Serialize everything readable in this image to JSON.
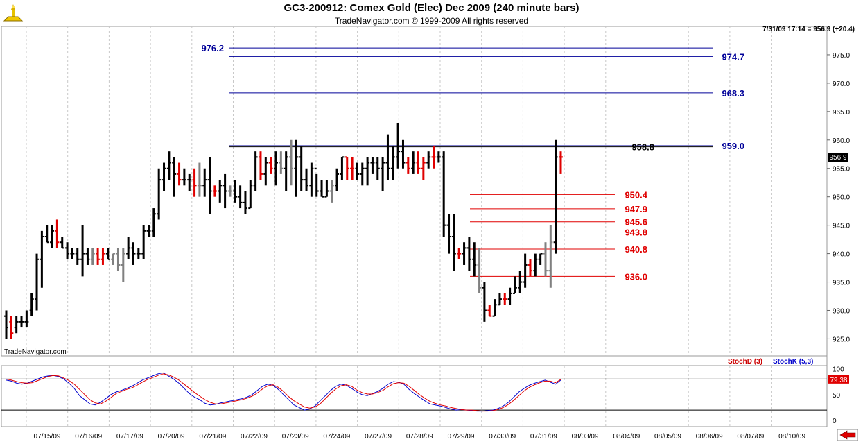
{
  "header": {
    "title": "GC3-200912:  Comex Gold (Elec) Dec 2009  (240 minute bars)",
    "subtitle": "TradeNavigator.com © 1999-2009 All rights reserved",
    "quote": "7/31/09 17:14 = 956.9 (+20.4)",
    "watermark": "TradeNavigator.com",
    "logo_icon": "trade-navigator-logo-icon"
  },
  "colors": {
    "up_bar": "#000000",
    "down_bar": "#e00000",
    "gray_bar": "#808080",
    "level_blue": "#000099",
    "level_red": "#e00000",
    "stoch_d": "#e00000",
    "stoch_k": "#0000cc"
  },
  "chart_data": {
    "type": "ohlc",
    "ylim": [
      922,
      980
    ],
    "y_ticks": [
      "925.0",
      "930.0",
      "935.0",
      "940.0",
      "945.0",
      "950.0",
      "955.0",
      "960.0",
      "965.0",
      "970.0",
      "975.0"
    ],
    "last_price_label": "956.9",
    "x_tick_labels": [
      "07/15/09",
      "07/16/09",
      "07/17/09",
      "07/20/09",
      "07/21/09",
      "07/22/09",
      "07/23/09",
      "07/24/09",
      "07/27/09",
      "07/28/09",
      "07/29/09",
      "07/30/09",
      "07/31/09",
      "08/03/09",
      "08/04/09",
      "08/05/09",
      "08/06/09",
      "08/07/09",
      "08/10/09"
    ],
    "bars": [
      [
        929,
        925,
        930,
        927,
        "k"
      ],
      [
        928,
        925,
        929,
        926,
        "r"
      ],
      [
        927,
        926,
        929,
        928,
        "k"
      ],
      [
        928,
        927,
        929,
        928,
        "k"
      ],
      [
        928,
        927,
        930,
        928,
        "k"
      ],
      [
        930,
        929,
        933,
        932,
        "k"
      ],
      [
        932,
        930,
        940,
        939,
        "k"
      ],
      [
        939,
        934,
        944,
        943,
        "k"
      ],
      [
        943,
        942,
        945,
        942,
        "k"
      ],
      [
        942,
        941,
        945,
        944,
        "k"
      ],
      [
        944,
        941,
        946,
        942,
        "r"
      ],
      [
        942,
        941,
        943,
        941,
        "k"
      ],
      [
        941,
        939,
        942,
        940,
        "k"
      ],
      [
        940,
        939,
        941,
        940,
        "k"
      ],
      [
        940,
        938,
        941,
        939,
        "k"
      ],
      [
        939,
        936,
        945,
        940,
        "k"
      ],
      [
        940,
        938,
        941,
        939,
        "k"
      ],
      [
        939,
        938,
        941,
        940,
        "g"
      ],
      [
        940,
        938,
        941,
        939,
        "r"
      ],
      [
        939,
        938,
        941,
        940,
        "r"
      ],
      [
        940,
        939,
        941,
        939,
        "k"
      ],
      [
        939,
        938,
        940,
        940,
        "g"
      ],
      [
        940,
        937,
        941,
        938,
        "g"
      ],
      [
        938,
        935,
        941,
        940,
        "g"
      ],
      [
        940,
        939,
        943,
        941,
        "k"
      ],
      [
        941,
        938,
        942,
        940,
        "k"
      ],
      [
        940,
        939,
        941,
        940,
        "k"
      ],
      [
        940,
        939,
        945,
        944,
        "k"
      ],
      [
        944,
        943,
        945,
        944,
        "k"
      ],
      [
        944,
        943,
        948,
        947,
        "k"
      ],
      [
        947,
        946,
        955,
        953,
        "k"
      ],
      [
        953,
        951,
        956,
        955,
        "k"
      ],
      [
        955,
        953,
        958,
        956,
        "k"
      ],
      [
        956,
        950,
        957,
        954,
        "k"
      ],
      [
        954,
        952,
        956,
        953,
        "r"
      ],
      [
        953,
        952,
        955,
        953,
        "k"
      ],
      [
        953,
        951,
        954,
        953,
        "k"
      ],
      [
        953,
        950,
        955,
        952,
        "r"
      ],
      [
        952,
        950,
        956,
        952,
        "g"
      ],
      [
        952,
        950,
        955,
        953,
        "k"
      ],
      [
        953,
        947,
        957,
        951,
        "k"
      ],
      [
        951,
        950,
        952,
        951,
        "r"
      ],
      [
        951,
        949,
        953,
        952,
        "k"
      ],
      [
        952,
        948,
        954,
        951,
        "k"
      ],
      [
        951,
        950,
        952,
        951,
        "g"
      ],
      [
        951,
        949,
        953,
        950,
        "k"
      ],
      [
        950,
        948,
        952,
        949,
        "k"
      ],
      [
        949,
        947,
        951,
        948,
        "k"
      ],
      [
        948,
        948,
        953,
        952,
        "k"
      ],
      [
        952,
        951,
        958,
        957,
        "k"
      ],
      [
        957,
        953,
        958,
        954,
        "r"
      ],
      [
        954,
        952,
        957,
        956,
        "k"
      ],
      [
        956,
        954,
        957,
        955,
        "r"
      ],
      [
        955,
        952,
        958,
        956,
        "k"
      ],
      [
        956,
        954,
        958,
        955,
        "g"
      ],
      [
        955,
        951,
        958,
        957,
        "k"
      ],
      [
        957,
        952,
        960,
        955,
        "g"
      ],
      [
        955,
        950,
        960,
        957,
        "k"
      ],
      [
        957,
        951,
        959,
        953,
        "k"
      ],
      [
        953,
        951,
        955,
        952,
        "k"
      ],
      [
        952,
        950,
        956,
        955,
        "k"
      ],
      [
        955,
        950,
        954,
        951,
        "k"
      ],
      [
        951,
        950,
        953,
        950,
        "k"
      ],
      [
        950,
        950,
        953,
        951,
        "k"
      ],
      [
        951,
        949,
        953,
        952,
        "g"
      ],
      [
        952,
        951,
        955,
        954,
        "k"
      ],
      [
        954,
        953,
        957,
        957,
        "k"
      ],
      [
        957,
        953,
        957,
        955,
        "r"
      ],
      [
        955,
        953,
        957,
        955,
        "r"
      ],
      [
        955,
        953,
        956,
        954,
        "k"
      ],
      [
        954,
        952,
        956,
        955,
        "k"
      ],
      [
        955,
        952,
        957,
        956,
        "k"
      ],
      [
        956,
        954,
        957,
        956,
        "k"
      ],
      [
        956,
        953,
        957,
        955,
        "k"
      ],
      [
        955,
        951,
        957,
        956,
        "k"
      ],
      [
        956,
        953,
        961,
        955,
        "k"
      ],
      [
        955,
        953,
        959,
        957,
        "k"
      ],
      [
        957,
        955,
        963,
        958,
        "k"
      ],
      [
        958,
        955,
        960,
        956,
        "k"
      ],
      [
        956,
        954,
        957,
        955,
        "r"
      ],
      [
        955,
        954,
        958,
        956,
        "k"
      ],
      [
        956,
        954,
        958,
        955,
        "r"
      ],
      [
        955,
        953,
        957,
        956,
        "r"
      ],
      [
        956,
        955,
        958,
        957,
        "k"
      ],
      [
        957,
        955,
        959,
        957,
        "r"
      ],
      [
        957,
        956,
        958,
        957,
        "k"
      ],
      [
        957,
        943,
        958,
        945,
        "k"
      ],
      [
        945,
        940,
        947,
        943,
        "k"
      ],
      [
        943,
        937,
        947,
        940,
        "k"
      ],
      [
        940,
        939,
        941,
        940,
        "r"
      ],
      [
        940,
        938,
        942,
        941,
        "k"
      ],
      [
        941,
        937,
        943,
        939,
        "k"
      ],
      [
        939,
        936,
        942,
        938,
        "k"
      ],
      [
        938,
        933,
        941,
        934,
        "g"
      ],
      [
        934,
        928,
        935,
        930,
        "k"
      ],
      [
        930,
        929,
        931,
        929,
        "r"
      ],
      [
        929,
        929,
        932,
        931,
        "k"
      ],
      [
        931,
        931,
        933,
        932,
        "k"
      ],
      [
        932,
        931,
        933,
        932,
        "r"
      ],
      [
        932,
        931,
        934,
        933,
        "k"
      ],
      [
        933,
        933,
        936,
        934,
        "k"
      ],
      [
        934,
        933,
        937,
        935,
        "k"
      ],
      [
        935,
        934,
        940,
        938,
        "k"
      ],
      [
        938,
        936,
        939,
        937,
        "r"
      ],
      [
        937,
        936,
        940,
        939,
        "k"
      ],
      [
        939,
        938,
        940,
        940,
        "k"
      ],
      [
        940,
        936,
        942,
        937,
        "g"
      ],
      [
        937,
        934,
        945,
        942,
        "g"
      ],
      [
        942,
        940,
        960,
        957,
        "k"
      ],
      [
        957,
        954,
        958,
        957,
        "r"
      ]
    ],
    "levels": [
      {
        "value": 976.2,
        "label": "976.2",
        "color": "blue",
        "label_side": "left"
      },
      {
        "value": 974.7,
        "label": "974.7",
        "color": "blue",
        "label_side": "right"
      },
      {
        "value": 968.3,
        "label": "968.3",
        "color": "blue",
        "label_side": "right"
      },
      {
        "value": 959.0,
        "label": "959.0",
        "color": "blue",
        "label_side": "right"
      },
      {
        "value": 958.8,
        "label": "958.8",
        "color": "black",
        "label_side": "mid"
      },
      {
        "value": 950.4,
        "label": "950.4",
        "color": "red",
        "label_side": "mid"
      },
      {
        "value": 947.9,
        "label": "947.9",
        "color": "red",
        "label_side": "mid"
      },
      {
        "value": 945.6,
        "label": "945.6",
        "color": "red",
        "label_side": "mid"
      },
      {
        "value": 943.8,
        "label": "943.8",
        "color": "red",
        "label_side": "mid"
      },
      {
        "value": 940.8,
        "label": "940.8",
        "color": "red",
        "label_side": "mid"
      },
      {
        "value": 936.0,
        "label": "936.0",
        "color": "red",
        "label_side": "mid"
      }
    ],
    "stochastic": {
      "legend_d": "StochD (3)",
      "legend_k": "StochK (5,3)",
      "ylim": [
        -12,
        106
      ],
      "y_ticks": [
        "100",
        "50",
        "0"
      ],
      "overbought": 80,
      "oversold": 20,
      "last_value_label": "79.38",
      "k": [
        78,
        76,
        72,
        70,
        72,
        76,
        80,
        84,
        86,
        87,
        85,
        80,
        72,
        62,
        48,
        40,
        32,
        30,
        35,
        42,
        50,
        55,
        58,
        62,
        66,
        72,
        78,
        82,
        86,
        90,
        92,
        86,
        80,
        72,
        62,
        52,
        45,
        40,
        33,
        30,
        31,
        34,
        36,
        38,
        40,
        42,
        45,
        50,
        58,
        66,
        70,
        68,
        60,
        50,
        40,
        30,
        25,
        20,
        22,
        28,
        38,
        48,
        58,
        66,
        70,
        68,
        62,
        55,
        50,
        48,
        52,
        56,
        62,
        70,
        75,
        74,
        70,
        60,
        52,
        45,
        38,
        32,
        30,
        28,
        25,
        22,
        20,
        21,
        20,
        19,
        18,
        18,
        19,
        20,
        23,
        28,
        35,
        45,
        55,
        62,
        68,
        72,
        75,
        78,
        74,
        70,
        78
      ],
      "d": [
        80,
        78,
        75,
        73,
        72,
        73,
        77,
        81,
        85,
        87,
        86,
        82,
        77,
        70,
        60,
        50,
        40,
        34,
        32,
        37,
        44,
        52,
        56,
        60,
        63,
        68,
        74,
        79,
        83,
        87,
        90,
        88,
        84,
        78,
        70,
        62,
        54,
        47,
        40,
        35,
        32,
        32,
        34,
        36,
        38,
        40,
        43,
        47,
        53,
        61,
        67,
        69,
        64,
        56,
        46,
        38,
        32,
        26,
        24,
        26,
        32,
        42,
        52,
        61,
        67,
        69,
        66,
        59,
        54,
        51,
        51,
        54,
        58,
        65,
        71,
        73,
        72,
        66,
        58,
        50,
        43,
        37,
        33,
        30,
        28,
        25,
        23,
        21,
        20,
        20,
        19,
        18,
        18,
        19,
        21,
        25,
        31,
        39,
        48,
        57,
        64,
        69,
        73,
        76,
        76,
        73,
        79.38
      ]
    }
  }
}
